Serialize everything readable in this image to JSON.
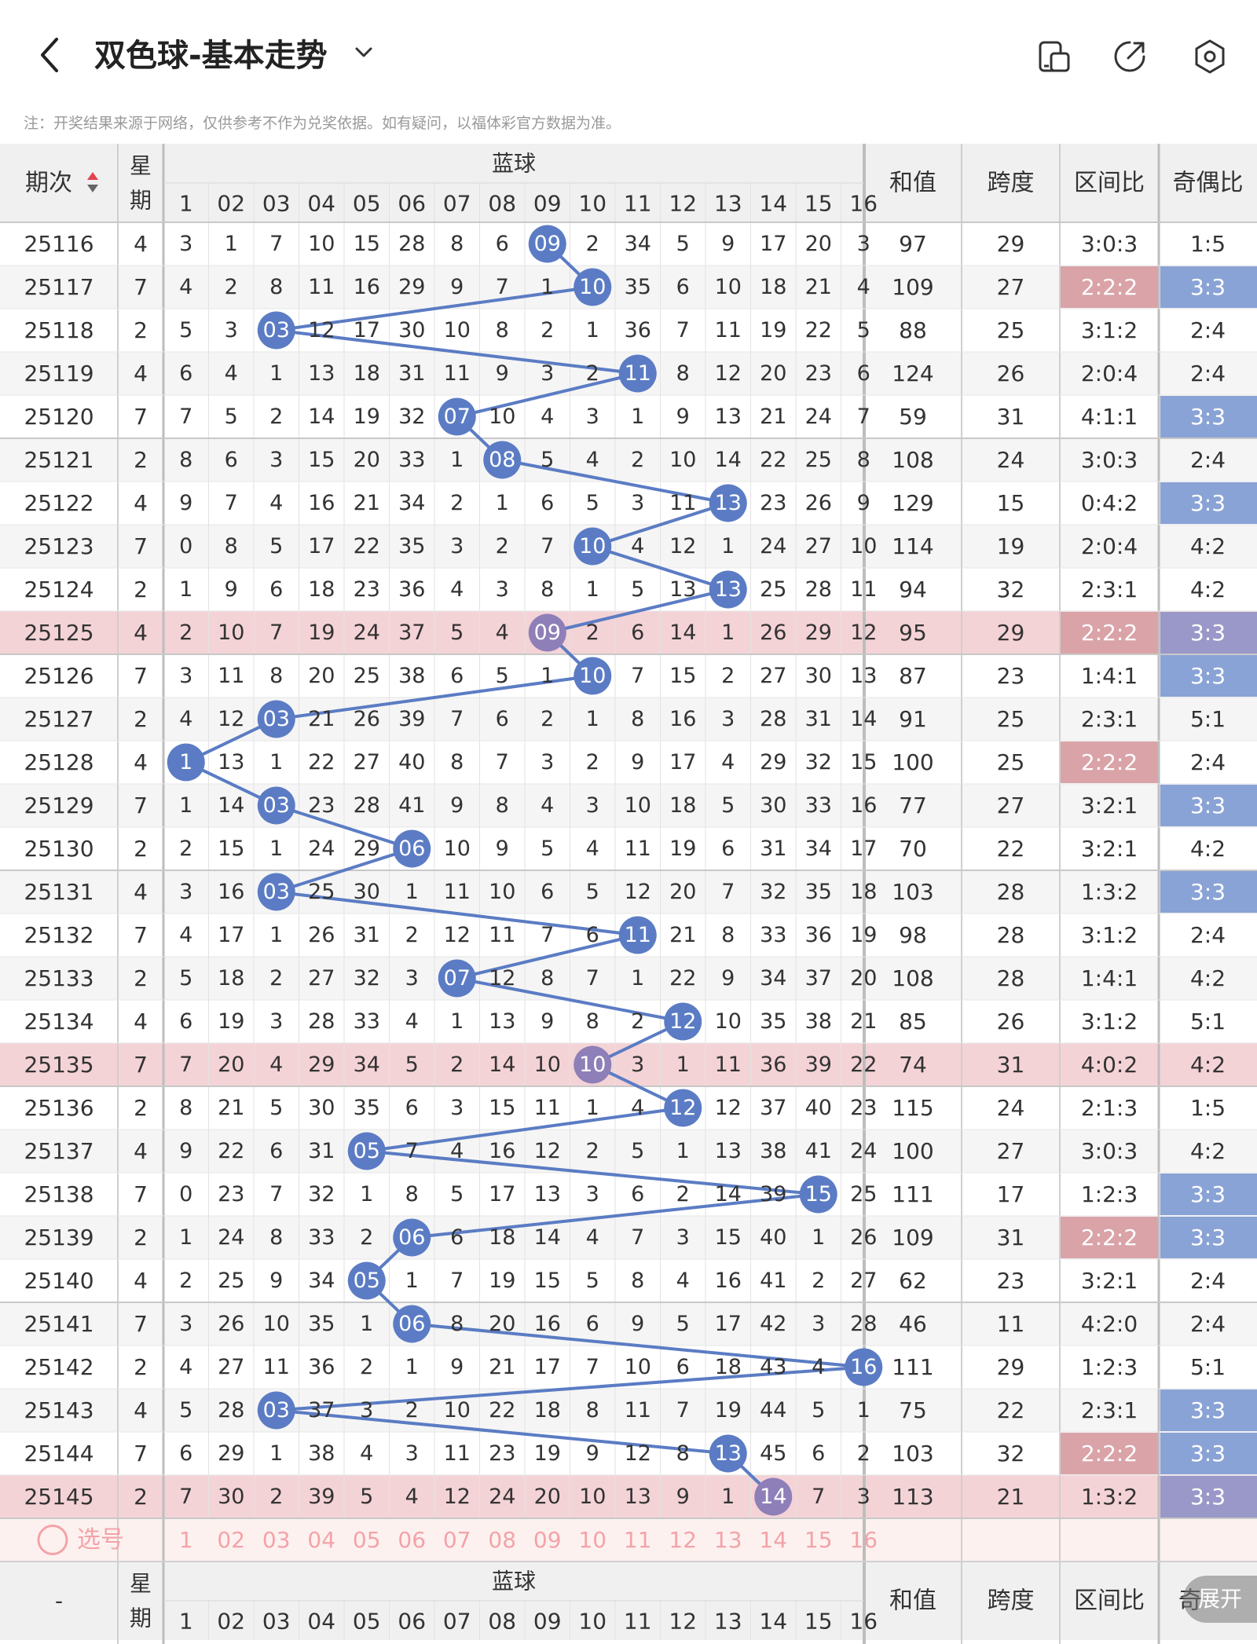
{
  "header": {
    "title": "双色球-基本走势",
    "back_icon": "chevron-left-icon",
    "dropdown_icon": "chevron-down-icon",
    "icons": [
      "screen-split-icon",
      "share-icon",
      "settings-icon"
    ]
  },
  "note": "注：开奖结果来源于网络，仅供参考不作为兑奖依据。如有疑问，以福体彩官方数据为准。",
  "table": {
    "col_period": "期次",
    "col_week": "星期",
    "col_blue_group": "蓝球",
    "col_sum": "和值",
    "col_span": "跨度",
    "col_zone": "区间比",
    "col_odd": "奇偶比",
    "blue_numbers": [
      "1",
      "02",
      "03",
      "04",
      "05",
      "06",
      "07",
      "08",
      "09",
      "10",
      "11",
      "12",
      "13",
      "14",
      "15",
      "16"
    ],
    "select_label": "选号",
    "footer_period": "-",
    "footer_odd_visible": "奇"
  },
  "rows": [
    {
      "p": "25116",
      "w": "4",
      "c": [
        "3",
        "1",
        "7",
        "10",
        "15",
        "28",
        "8",
        "6",
        "09",
        "2",
        "34",
        "5",
        "9",
        "17",
        "20",
        "3"
      ],
      "b": 9,
      "s": "97",
      "sp": "29",
      "z": "3:0:3",
      "o": "1:5",
      "zh": false,
      "oh": false,
      "hl": false
    },
    {
      "p": "25117",
      "w": "7",
      "c": [
        "4",
        "2",
        "8",
        "11",
        "16",
        "29",
        "9",
        "7",
        "1",
        "10",
        "35",
        "6",
        "10",
        "18",
        "21",
        "4"
      ],
      "b": 10,
      "s": "109",
      "sp": "27",
      "z": "2:2:2",
      "o": "3:3",
      "zh": true,
      "oh": true,
      "hl": false
    },
    {
      "p": "25118",
      "w": "2",
      "c": [
        "5",
        "3",
        "03",
        "12",
        "17",
        "30",
        "10",
        "8",
        "2",
        "1",
        "36",
        "7",
        "11",
        "19",
        "22",
        "5"
      ],
      "b": 3,
      "s": "88",
      "sp": "25",
      "z": "3:1:2",
      "o": "2:4",
      "zh": false,
      "oh": false,
      "hl": false
    },
    {
      "p": "25119",
      "w": "4",
      "c": [
        "6",
        "4",
        "1",
        "13",
        "18",
        "31",
        "11",
        "9",
        "3",
        "2",
        "11",
        "8",
        "12",
        "20",
        "23",
        "6"
      ],
      "b": 11,
      "s": "124",
      "sp": "26",
      "z": "2:0:4",
      "o": "2:4",
      "zh": false,
      "oh": false,
      "hl": false
    },
    {
      "p": "25120",
      "w": "7",
      "c": [
        "7",
        "5",
        "2",
        "14",
        "19",
        "32",
        "07",
        "10",
        "4",
        "3",
        "1",
        "9",
        "13",
        "21",
        "24",
        "7"
      ],
      "b": 7,
      "s": "59",
      "sp": "31",
      "z": "4:1:1",
      "o": "3:3",
      "zh": false,
      "oh": true,
      "hl": false
    },
    {
      "p": "25121",
      "w": "2",
      "c": [
        "8",
        "6",
        "3",
        "15",
        "20",
        "33",
        "1",
        "08",
        "5",
        "4",
        "2",
        "10",
        "14",
        "22",
        "25",
        "8"
      ],
      "b": 8,
      "s": "108",
      "sp": "24",
      "z": "3:0:3",
      "o": "2:4",
      "zh": false,
      "oh": false,
      "hl": false
    },
    {
      "p": "25122",
      "w": "4",
      "c": [
        "9",
        "7",
        "4",
        "16",
        "21",
        "34",
        "2",
        "1",
        "6",
        "5",
        "3",
        "11",
        "13",
        "23",
        "26",
        "9"
      ],
      "b": 13,
      "s": "129",
      "sp": "15",
      "z": "0:4:2",
      "o": "3:3",
      "zh": false,
      "oh": true,
      "hl": false
    },
    {
      "p": "25123",
      "w": "7",
      "c": [
        "0",
        "8",
        "5",
        "17",
        "22",
        "35",
        "3",
        "2",
        "7",
        "10",
        "4",
        "12",
        "1",
        "24",
        "27",
        "10"
      ],
      "b": 10,
      "s": "114",
      "sp": "19",
      "z": "2:0:4",
      "o": "4:2",
      "zh": false,
      "oh": false,
      "hl": false
    },
    {
      "p": "25124",
      "w": "2",
      "c": [
        "1",
        "9",
        "6",
        "18",
        "23",
        "36",
        "4",
        "3",
        "8",
        "1",
        "5",
        "13",
        "13",
        "25",
        "28",
        "11"
      ],
      "b": 13,
      "s": "94",
      "sp": "32",
      "z": "2:3:1",
      "o": "4:2",
      "zh": false,
      "oh": false,
      "hl": false
    },
    {
      "p": "25125",
      "w": "4",
      "c": [
        "2",
        "10",
        "7",
        "19",
        "24",
        "37",
        "5",
        "4",
        "09",
        "2",
        "6",
        "14",
        "1",
        "26",
        "29",
        "12"
      ],
      "b": 9,
      "s": "95",
      "sp": "29",
      "z": "2:2:2",
      "o": "3:3",
      "zh": true,
      "oh": true,
      "hl": true
    },
    {
      "p": "25126",
      "w": "7",
      "c": [
        "3",
        "11",
        "8",
        "20",
        "25",
        "38",
        "6",
        "5",
        "1",
        "10",
        "7",
        "15",
        "2",
        "27",
        "30",
        "13"
      ],
      "b": 10,
      "s": "87",
      "sp": "23",
      "z": "1:4:1",
      "o": "3:3",
      "zh": false,
      "oh": true,
      "hl": false
    },
    {
      "p": "25127",
      "w": "2",
      "c": [
        "4",
        "12",
        "03",
        "21",
        "26",
        "39",
        "7",
        "6",
        "2",
        "1",
        "8",
        "16",
        "3",
        "28",
        "31",
        "14"
      ],
      "b": 3,
      "s": "91",
      "sp": "25",
      "z": "2:3:1",
      "o": "5:1",
      "zh": false,
      "oh": false,
      "hl": false
    },
    {
      "p": "25128",
      "w": "4",
      "c": [
        "1",
        "13",
        "1",
        "22",
        "27",
        "40",
        "8",
        "7",
        "3",
        "2",
        "9",
        "17",
        "4",
        "29",
        "32",
        "15"
      ],
      "b": 1,
      "s": "100",
      "sp": "25",
      "z": "2:2:2",
      "o": "2:4",
      "zh": true,
      "oh": false,
      "hl": false
    },
    {
      "p": "25129",
      "w": "7",
      "c": [
        "1",
        "14",
        "03",
        "23",
        "28",
        "41",
        "9",
        "8",
        "4",
        "3",
        "10",
        "18",
        "5",
        "30",
        "33",
        "16"
      ],
      "b": 3,
      "s": "77",
      "sp": "27",
      "z": "3:2:1",
      "o": "3:3",
      "zh": false,
      "oh": true,
      "hl": false
    },
    {
      "p": "25130",
      "w": "2",
      "c": [
        "2",
        "15",
        "1",
        "24",
        "29",
        "06",
        "10",
        "9",
        "5",
        "4",
        "11",
        "19",
        "6",
        "31",
        "34",
        "17"
      ],
      "b": 6,
      "s": "70",
      "sp": "22",
      "z": "3:2:1",
      "o": "4:2",
      "zh": false,
      "oh": false,
      "hl": false
    },
    {
      "p": "25131",
      "w": "4",
      "c": [
        "3",
        "16",
        "03",
        "25",
        "30",
        "1",
        "11",
        "10",
        "6",
        "5",
        "12",
        "20",
        "7",
        "32",
        "35",
        "18"
      ],
      "b": 3,
      "s": "103",
      "sp": "28",
      "z": "1:3:2",
      "o": "3:3",
      "zh": false,
      "oh": true,
      "hl": false
    },
    {
      "p": "25132",
      "w": "7",
      "c": [
        "4",
        "17",
        "1",
        "26",
        "31",
        "2",
        "12",
        "11",
        "7",
        "6",
        "11",
        "21",
        "8",
        "33",
        "36",
        "19"
      ],
      "b": 11,
      "s": "98",
      "sp": "28",
      "z": "3:1:2",
      "o": "2:4",
      "zh": false,
      "oh": false,
      "hl": false
    },
    {
      "p": "25133",
      "w": "2",
      "c": [
        "5",
        "18",
        "2",
        "27",
        "32",
        "3",
        "07",
        "12",
        "8",
        "7",
        "1",
        "22",
        "9",
        "34",
        "37",
        "20"
      ],
      "b": 7,
      "s": "108",
      "sp": "28",
      "z": "1:4:1",
      "o": "4:2",
      "zh": false,
      "oh": false,
      "hl": false
    },
    {
      "p": "25134",
      "w": "4",
      "c": [
        "6",
        "19",
        "3",
        "28",
        "33",
        "4",
        "1",
        "13",
        "9",
        "8",
        "2",
        "12",
        "10",
        "35",
        "38",
        "21"
      ],
      "b": 12,
      "s": "85",
      "sp": "26",
      "z": "3:1:2",
      "o": "5:1",
      "zh": false,
      "oh": false,
      "hl": false
    },
    {
      "p": "25135",
      "w": "7",
      "c": [
        "7",
        "20",
        "4",
        "29",
        "34",
        "5",
        "2",
        "14",
        "10",
        "10",
        "3",
        "1",
        "11",
        "36",
        "39",
        "22"
      ],
      "b": 10,
      "s": "74",
      "sp": "31",
      "z": "4:0:2",
      "o": "4:2",
      "zh": false,
      "oh": false,
      "hl": true
    },
    {
      "p": "25136",
      "w": "2",
      "c": [
        "8",
        "21",
        "5",
        "30",
        "35",
        "6",
        "3",
        "15",
        "11",
        "1",
        "4",
        "12",
        "12",
        "37",
        "40",
        "23"
      ],
      "b": 12,
      "s": "115",
      "sp": "24",
      "z": "2:1:3",
      "o": "1:5",
      "zh": false,
      "oh": false,
      "hl": false
    },
    {
      "p": "25137",
      "w": "4",
      "c": [
        "9",
        "22",
        "6",
        "31",
        "05",
        "7",
        "4",
        "16",
        "12",
        "2",
        "5",
        "1",
        "13",
        "38",
        "41",
        "24"
      ],
      "b": 5,
      "s": "100",
      "sp": "27",
      "z": "3:0:3",
      "o": "4:2",
      "zh": false,
      "oh": false,
      "hl": false
    },
    {
      "p": "25138",
      "w": "7",
      "c": [
        "0",
        "23",
        "7",
        "32",
        "1",
        "8",
        "5",
        "17",
        "13",
        "3",
        "6",
        "2",
        "14",
        "39",
        "15",
        "25"
      ],
      "b": 15,
      "s": "111",
      "sp": "17",
      "z": "1:2:3",
      "o": "3:3",
      "zh": false,
      "oh": true,
      "hl": false
    },
    {
      "p": "25139",
      "w": "2",
      "c": [
        "1",
        "24",
        "8",
        "33",
        "2",
        "06",
        "6",
        "18",
        "14",
        "4",
        "7",
        "3",
        "15",
        "40",
        "1",
        "26"
      ],
      "b": 6,
      "s": "109",
      "sp": "31",
      "z": "2:2:2",
      "o": "3:3",
      "zh": true,
      "oh": true,
      "hl": false
    },
    {
      "p": "25140",
      "w": "4",
      "c": [
        "2",
        "25",
        "9",
        "34",
        "05",
        "1",
        "7",
        "19",
        "15",
        "5",
        "8",
        "4",
        "16",
        "41",
        "2",
        "27"
      ],
      "b": 5,
      "s": "62",
      "sp": "23",
      "z": "3:2:1",
      "o": "2:4",
      "zh": false,
      "oh": false,
      "hl": false
    },
    {
      "p": "25141",
      "w": "7",
      "c": [
        "3",
        "26",
        "10",
        "35",
        "1",
        "06",
        "8",
        "20",
        "16",
        "6",
        "9",
        "5",
        "17",
        "42",
        "3",
        "28"
      ],
      "b": 6,
      "s": "46",
      "sp": "11",
      "z": "4:2:0",
      "o": "2:4",
      "zh": false,
      "oh": false,
      "hl": false
    },
    {
      "p": "25142",
      "w": "2",
      "c": [
        "4",
        "27",
        "11",
        "36",
        "2",
        "1",
        "9",
        "21",
        "17",
        "7",
        "10",
        "6",
        "18",
        "43",
        "4",
        "16"
      ],
      "b": 16,
      "s": "111",
      "sp": "29",
      "z": "1:2:3",
      "o": "5:1",
      "zh": false,
      "oh": false,
      "hl": false
    },
    {
      "p": "25143",
      "w": "4",
      "c": [
        "5",
        "28",
        "03",
        "37",
        "3",
        "2",
        "10",
        "22",
        "18",
        "8",
        "11",
        "7",
        "19",
        "44",
        "5",
        "1"
      ],
      "b": 3,
      "s": "75",
      "sp": "22",
      "z": "2:3:1",
      "o": "3:3",
      "zh": false,
      "oh": true,
      "hl": false
    },
    {
      "p": "25144",
      "w": "7",
      "c": [
        "6",
        "29",
        "1",
        "38",
        "4",
        "3",
        "11",
        "23",
        "19",
        "9",
        "12",
        "8",
        "13",
        "45",
        "6",
        "2"
      ],
      "b": 13,
      "s": "103",
      "sp": "32",
      "z": "2:2:2",
      "o": "3:3",
      "zh": true,
      "oh": true,
      "hl": false
    },
    {
      "p": "25145",
      "w": "2",
      "c": [
        "7",
        "30",
        "2",
        "39",
        "5",
        "4",
        "12",
        "24",
        "20",
        "10",
        "13",
        "9",
        "1",
        "14",
        "7",
        "3"
      ],
      "b": 14,
      "s": "113",
      "sp": "21",
      "z": "1:3:2",
      "o": "3:3",
      "zh": false,
      "oh": true,
      "hl": true
    }
  ],
  "expand_button": "展开",
  "colors": {
    "ball": "#5b7cc4",
    "ball_highlight": "#8e7fb8",
    "line": "#5b7cc4",
    "header_bg": "#f0f0f0",
    "row_alt": "#f5f5f5",
    "row_highlight": "#f4d3d7",
    "zone_highlight": "#d9a3a8",
    "odd_highlight": "#8aa3d6",
    "select_text": "#f3a3a8",
    "select_bg": "#fdf1f0"
  }
}
